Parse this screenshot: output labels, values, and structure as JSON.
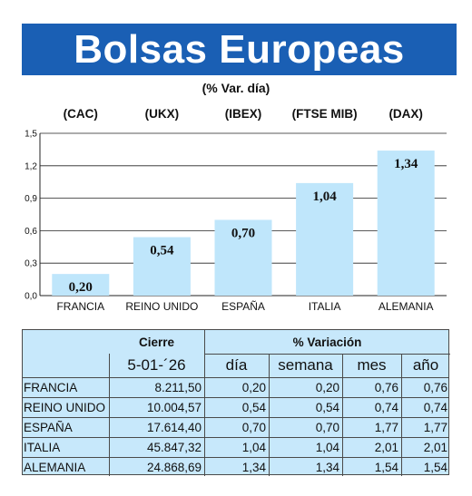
{
  "title": "Bolsas Europeas",
  "subtitle": "(% Var. día)",
  "chart_data": {
    "type": "bar",
    "categories": [
      "FRANCIA",
      "REINO UNIDO",
      "ESPAÑA",
      "ITALIA",
      "ALEMANIA"
    ],
    "index_codes": [
      "(CAC)",
      "(UKX)",
      "(IBEX)",
      "(FTSE MIB)",
      "(DAX)"
    ],
    "values": [
      0.2,
      0.54,
      0.7,
      1.04,
      1.34
    ],
    "value_labels": [
      "0,20",
      "0,54",
      "0,70",
      "1,04",
      "1,34"
    ],
    "ylim": [
      0,
      1.5
    ],
    "yticks": [
      0,
      0.3,
      0.6,
      0.9,
      1.2,
      1.5
    ],
    "ytick_labels": [
      "0,0",
      "0,3",
      "0,6",
      "0,9",
      "1,2",
      "1,5"
    ],
    "grid": true,
    "bar_color": "#bfe6fb"
  },
  "table": {
    "header_cierre": "Cierre",
    "header_variacion": "% Variación",
    "date": "5-01-´26",
    "col_dia": "día",
    "col_semana": "semana",
    "col_mes": "mes",
    "col_anio": "año",
    "rows": [
      {
        "pais": "FRANCIA",
        "cierre": "8.211,50",
        "dia": "0,20",
        "semana": "0,20",
        "mes": "0,76",
        "anio": "0,76"
      },
      {
        "pais": "REINO UNIDO",
        "cierre": "10.004,57",
        "dia": "0,54",
        "semana": "0,54",
        "mes": "0,74",
        "anio": "0,74"
      },
      {
        "pais": "ESPAÑA",
        "cierre": "17.614,40",
        "dia": "0,70",
        "semana": "0,70",
        "mes": "1,77",
        "anio": "1,77"
      },
      {
        "pais": "ITALIA",
        "cierre": "45.847,32",
        "dia": "1,04",
        "semana": "1,04",
        "mes": "2,01",
        "anio": "2,01"
      },
      {
        "pais": "ALEMANIA",
        "cierre": "24.868,69",
        "dia": "1,34",
        "semana": "1,34",
        "mes": "1,54",
        "anio": "1,54"
      }
    ]
  },
  "colors": {
    "banner": "#1a5fb4",
    "table_bg": "#c7e8fb"
  }
}
